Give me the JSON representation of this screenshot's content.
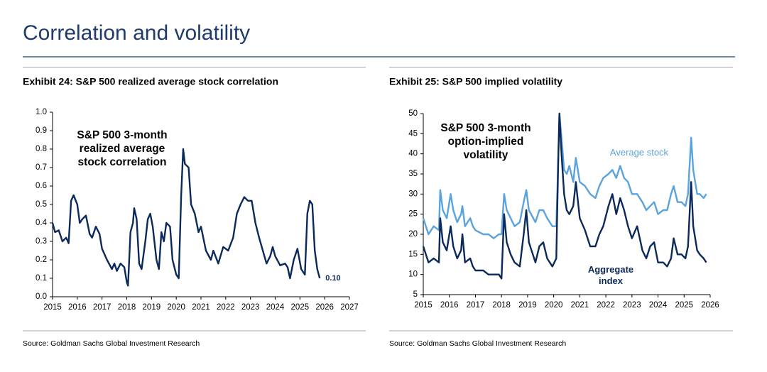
{
  "header": {
    "title": "Correlation and volatility"
  },
  "chart_data": [
    {
      "type": "line",
      "title": "Exhibit 24: S&P 500 realized average stock correlation",
      "annotation": "S&P 500 3-month realized average stock correlation",
      "source": "Source: Goldman Sachs Global Investment Research",
      "xlim": [
        2015,
        2027
      ],
      "xticks": [
        2015,
        2016,
        2017,
        2018,
        2019,
        2020,
        2021,
        2022,
        2023,
        2024,
        2025,
        2026,
        2027
      ],
      "ylim": [
        0,
        1
      ],
      "yticks": [
        {
          "value": 0,
          "label": "0.0"
        },
        0.1,
        0.2,
        0.3,
        0.4,
        0.5,
        0.6,
        0.7,
        0.8,
        0.9,
        {
          "value": 1,
          "label": "1.0"
        }
      ],
      "x": [
        2015.0,
        2015.1,
        2015.25,
        2015.4,
        2015.55,
        2015.65,
        2015.75,
        2015.85,
        2016.0,
        2016.1,
        2016.2,
        2016.35,
        2016.5,
        2016.6,
        2016.75,
        2016.9,
        2017.0,
        2017.2,
        2017.4,
        2017.5,
        2017.6,
        2017.75,
        2017.9,
        2018.0,
        2018.05,
        2018.15,
        2018.25,
        2018.3,
        2018.4,
        2018.5,
        2018.6,
        2018.75,
        2018.85,
        2018.95,
        2019.05,
        2019.2,
        2019.3,
        2019.4,
        2019.5,
        2019.6,
        2019.75,
        2019.85,
        2020.0,
        2020.1,
        2020.2,
        2020.28,
        2020.35,
        2020.5,
        2020.6,
        2020.75,
        2020.9,
        2021.0,
        2021.2,
        2021.4,
        2021.5,
        2021.7,
        2021.9,
        2022.1,
        2022.3,
        2022.45,
        2022.6,
        2022.75,
        2022.9,
        2023.05,
        2023.2,
        2023.35,
        2023.5,
        2023.65,
        2023.8,
        2023.9,
        2024.0,
        2024.2,
        2024.4,
        2024.5,
        2024.6,
        2024.75,
        2024.9,
        2025.05,
        2025.2,
        2025.3,
        2025.4,
        2025.5,
        2025.6,
        2025.7,
        2025.8
      ],
      "values": [
        0.4,
        0.35,
        0.36,
        0.3,
        0.32,
        0.29,
        0.52,
        0.55,
        0.5,
        0.4,
        0.42,
        0.44,
        0.34,
        0.32,
        0.38,
        0.34,
        0.26,
        0.2,
        0.15,
        0.18,
        0.14,
        0.18,
        0.16,
        0.08,
        0.06,
        0.35,
        0.4,
        0.48,
        0.42,
        0.18,
        0.15,
        0.3,
        0.42,
        0.45,
        0.38,
        0.2,
        0.15,
        0.35,
        0.3,
        0.4,
        0.38,
        0.2,
        0.12,
        0.1,
        0.55,
        0.8,
        0.72,
        0.7,
        0.5,
        0.45,
        0.35,
        0.38,
        0.25,
        0.2,
        0.25,
        0.18,
        0.27,
        0.25,
        0.32,
        0.45,
        0.5,
        0.54,
        0.52,
        0.52,
        0.4,
        0.32,
        0.25,
        0.18,
        0.22,
        0.27,
        0.22,
        0.17,
        0.18,
        0.16,
        0.1,
        0.2,
        0.26,
        0.15,
        0.12,
        0.45,
        0.52,
        0.5,
        0.25,
        0.15,
        0.1
      ],
      "color": "#0b2a5a",
      "last_label": {
        "value": 0.1,
        "label": "0.10"
      }
    },
    {
      "type": "line",
      "title": "Exhibit 25: S&P 500 implied volatility",
      "annotation": "S&P 500 3-month option-implied volatility",
      "source": "Source: Goldman Sachs Global Investment Research",
      "xlim": [
        2015,
        2026
      ],
      "xticks": [
        2015,
        2016,
        2017,
        2018,
        2019,
        2020,
        2021,
        2022,
        2023,
        2024,
        2025,
        2026
      ],
      "ylim": [
        5,
        50
      ],
      "yticks": [
        5,
        10,
        15,
        20,
        25,
        30,
        35,
        40,
        45,
        50
      ],
      "x": [
        2015.0,
        2015.2,
        2015.4,
        2015.6,
        2015.65,
        2015.75,
        2015.9,
        2016.05,
        2016.15,
        2016.3,
        2016.45,
        2016.5,
        2016.6,
        2016.8,
        2016.9,
        2017.0,
        2017.3,
        2017.5,
        2017.7,
        2017.9,
        2018.0,
        2018.1,
        2018.2,
        2018.35,
        2018.5,
        2018.7,
        2018.85,
        2018.95,
        2019.05,
        2019.3,
        2019.45,
        2019.6,
        2019.75,
        2019.95,
        2020.1,
        2020.18,
        2020.22,
        2020.3,
        2020.4,
        2020.5,
        2020.6,
        2020.75,
        2020.85,
        2021.0,
        2021.2,
        2021.4,
        2021.6,
        2021.75,
        2021.9,
        2022.1,
        2022.25,
        2022.4,
        2022.55,
        2022.7,
        2022.85,
        2023.0,
        2023.2,
        2023.4,
        2023.55,
        2023.7,
        2023.85,
        2024.0,
        2024.2,
        2024.35,
        2024.5,
        2024.6,
        2024.75,
        2024.9,
        2025.05,
        2025.15,
        2025.27,
        2025.35,
        2025.5,
        2025.6,
        2025.75,
        2025.85
      ],
      "series": [
        {
          "name": "Average stock",
          "color": "#5ba3dc",
          "values": [
            24,
            20,
            22,
            21,
            31,
            26,
            24,
            30,
            26,
            23,
            25,
            27,
            22,
            24,
            22,
            21,
            20,
            20,
            19,
            20,
            20,
            30,
            26,
            24,
            22,
            23,
            28,
            31,
            26,
            23,
            26,
            26,
            24,
            22,
            22,
            40,
            50,
            44,
            36,
            35,
            37,
            33,
            39,
            33,
            32,
            30,
            29,
            32,
            34,
            35,
            36,
            34,
            37,
            34,
            33,
            30,
            30,
            28,
            26,
            27,
            28,
            25,
            26,
            26,
            30,
            32,
            28,
            28,
            27,
            30,
            44,
            36,
            30,
            30,
            29,
            30
          ]
        },
        {
          "name": "Aggregate index",
          "color": "#0b2a5a",
          "values": [
            17,
            13,
            14,
            13,
            24,
            18,
            16,
            22,
            17,
            14,
            16,
            20,
            13,
            14,
            12,
            11,
            11,
            10,
            10,
            10,
            9,
            25,
            18,
            15,
            13,
            12,
            20,
            26,
            18,
            13,
            17,
            18,
            14,
            12,
            14,
            40,
            50,
            40,
            30,
            26,
            25,
            27,
            33,
            24,
            21,
            17,
            17,
            20,
            22,
            27,
            30,
            25,
            29,
            26,
            22,
            19,
            22,
            16,
            14,
            17,
            18,
            13,
            13,
            12,
            14,
            19,
            15,
            15,
            14,
            17,
            33,
            22,
            16,
            15,
            14,
            13
          ]
        }
      ]
    }
  ]
}
